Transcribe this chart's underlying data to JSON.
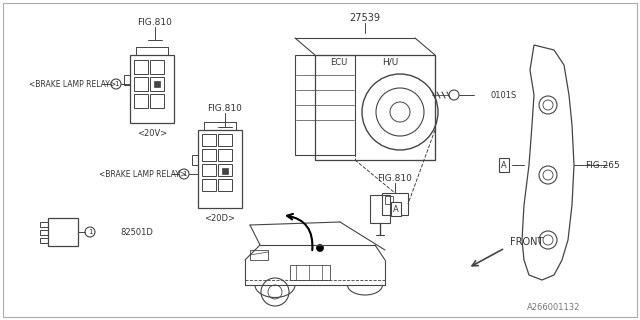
{
  "bg_color": "#ffffff",
  "line_color": "#444444",
  "fig_width": 6.4,
  "fig_height": 3.2,
  "dpi": 100,
  "border_color": "#999999",
  "text_color": "#333333",
  "part_number_27539": "27539",
  "label_HU": "H/U",
  "label_ECU": "ECU",
  "label_FIG810_1": "FIG.810",
  "label_FIG810_2": "FIG.810",
  "label_FIG810_3": "FIG.810",
  "label_FIG265": "FIG.265",
  "label_0101S": "0101S",
  "label_20V": "<20V>",
  "label_20D": "<20D>",
  "label_brake1": "<BRAKE LAMP RELAY>",
  "label_brake2": "<BRAKE LAMP RELAY>",
  "label_82501D": "82501D",
  "label_FRONT": "FRONT",
  "label_A": "A",
  "watermark": "A266001132"
}
